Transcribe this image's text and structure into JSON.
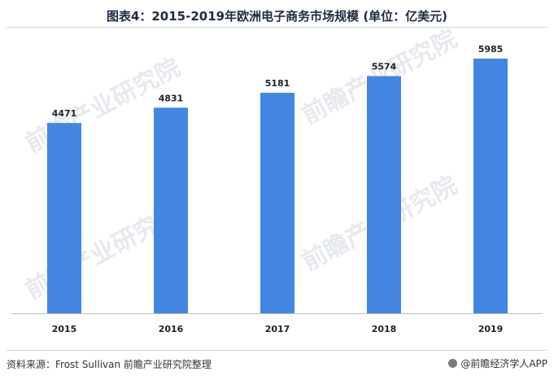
{
  "title": "图表4：2015-2019年欧洲电子商务市场规模 (单位：亿美元)",
  "source": "资料来源：Frost Sullivan 前瞻产业研究院整理",
  "brand": "@前瞻经济学人APP",
  "watermark": "前瞻产业研究院",
  "colors": {
    "bar": "#4286e2",
    "axis": "#bfbfbf",
    "text": "#222222"
  },
  "chart_data": {
    "type": "bar",
    "categories": [
      "2015",
      "2016",
      "2017",
      "2018",
      "2019"
    ],
    "values": [
      4471,
      4831,
      5181,
      5574,
      5985
    ],
    "ylim": [
      0,
      6500
    ],
    "grid": false,
    "legend": "none"
  }
}
